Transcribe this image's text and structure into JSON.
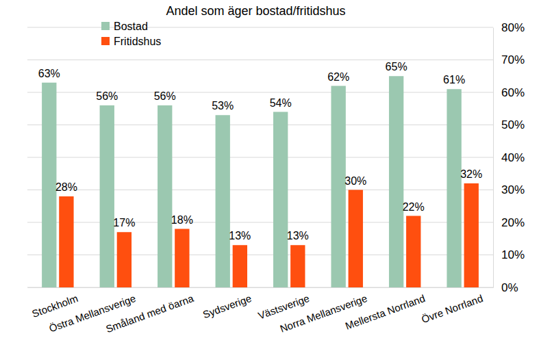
{
  "chart_data": {
    "type": "bar",
    "title": "Andel som äger bostad/fritidshus",
    "categories": [
      "Stockholm",
      "Östra Mellansverige",
      "Småland med öarna",
      "Sydsverige",
      "Västsverige",
      "Norra Mellansverige",
      "Mellersta Norrland",
      "Övre Norrland"
    ],
    "series": [
      {
        "name": "Bostad",
        "color": "#9bc8b0",
        "values": [
          63,
          56,
          56,
          53,
          54,
          62,
          65,
          61
        ],
        "value_labels": [
          "63%",
          "56%",
          "56%",
          "53%",
          "54%",
          "62%",
          "65%",
          "61%"
        ]
      },
      {
        "name": "Fritidshus",
        "color": "#ff4f0f",
        "values": [
          28,
          17,
          18,
          13,
          13,
          30,
          22,
          32
        ],
        "value_labels": [
          "28%",
          "17%",
          "18%",
          "13%",
          "13%",
          "30%",
          "22%",
          "32%"
        ]
      }
    ],
    "ylim": [
      0,
      80
    ],
    "yticks": [
      {
        "value": 0,
        "label": "0%"
      },
      {
        "value": 10,
        "label": "10%"
      },
      {
        "value": 20,
        "label": "20%"
      },
      {
        "value": 30,
        "label": "30%"
      },
      {
        "value": 40,
        "label": "40%"
      },
      {
        "value": 50,
        "label": "50%"
      },
      {
        "value": 60,
        "label": "60%"
      },
      {
        "value": 70,
        "label": "70%"
      },
      {
        "value": 80,
        "label": "80%"
      }
    ],
    "grid": true,
    "legend": "top-left",
    "data_labels": true
  }
}
